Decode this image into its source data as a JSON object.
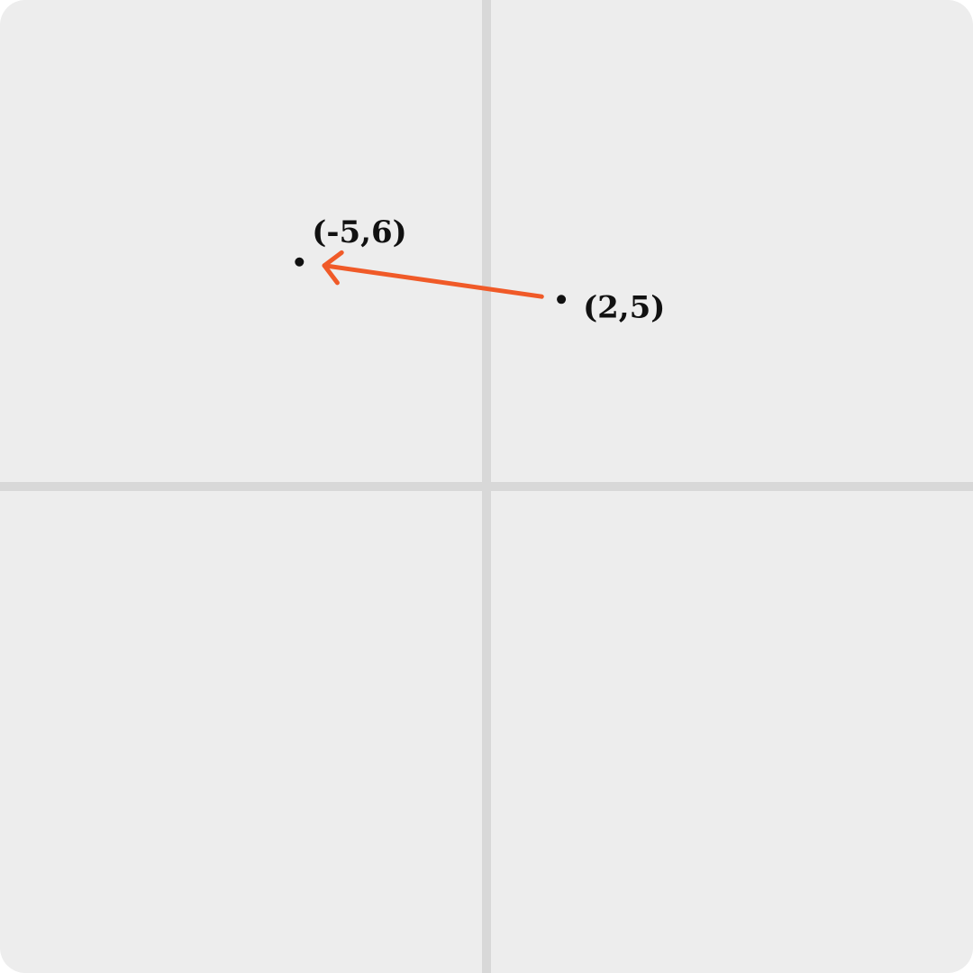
{
  "diagram": {
    "type": "coordinate-plane",
    "x_range": [
      -13,
      13
    ],
    "y_range": [
      -13,
      13
    ],
    "axes_color": "#d8d8d8",
    "background_color": "#ededed",
    "points": [
      {
        "id": "start",
        "x": 2,
        "y": 5,
        "label": "(2,5)"
      },
      {
        "id": "end",
        "x": -5,
        "y": 6,
        "label": "(-5,6)"
      }
    ],
    "vector": {
      "from": "start",
      "to": "end",
      "color": "#f05a28"
    }
  }
}
